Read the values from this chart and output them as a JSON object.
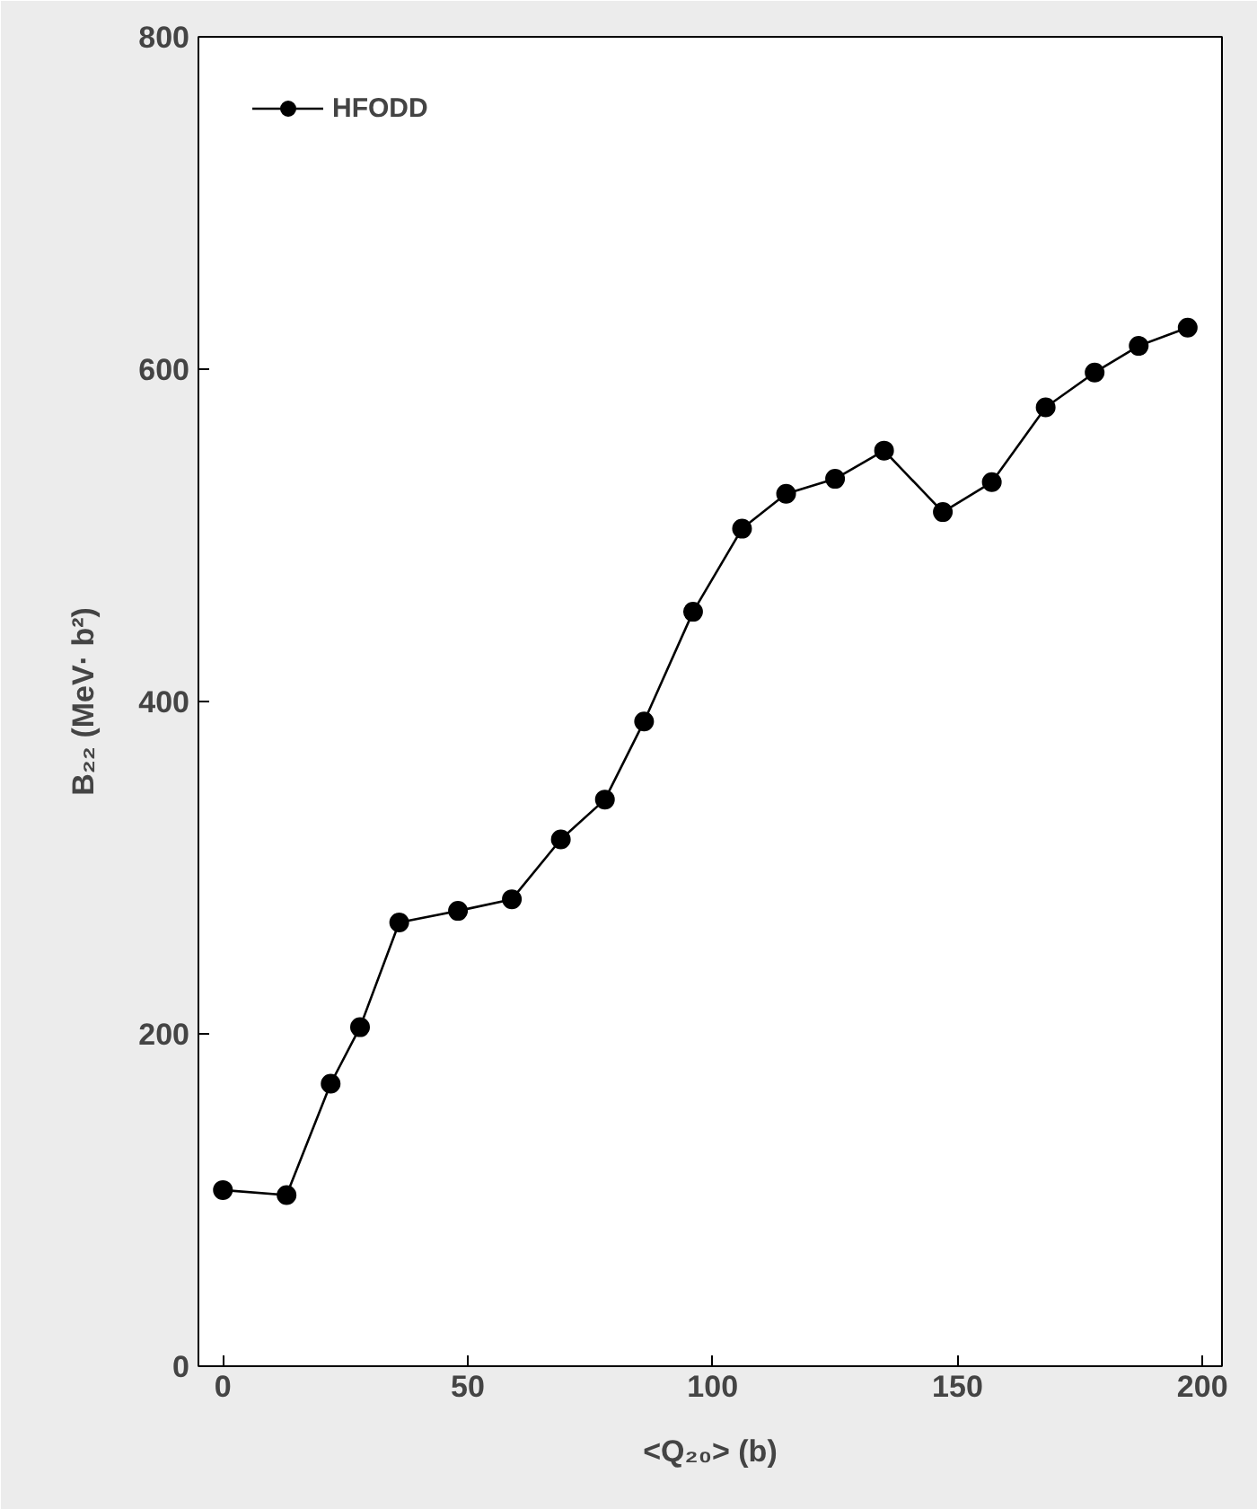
{
  "chart_data": {
    "type": "line",
    "xlabel": "<Q₂₀> (b)",
    "ylabel": "B₂₂ (MeV· b²)",
    "x": [
      0,
      13,
      22,
      28,
      36,
      48,
      59,
      69,
      78,
      86,
      96,
      106,
      115,
      125,
      135,
      147,
      157,
      168,
      178,
      187,
      197
    ],
    "series": [
      {
        "name": "HFODD",
        "color": "#000000",
        "values": [
          106,
          103,
          170,
          204,
          267,
          274,
          281,
          317,
          341,
          388,
          454,
          504,
          525,
          534,
          551,
          514,
          532,
          577,
          598,
          614,
          625
        ]
      }
    ],
    "xlim": [
      -5,
      204
    ],
    "ylim": [
      0,
      800
    ],
    "xticks": [
      0,
      50,
      100,
      150,
      200
    ],
    "yticks": [
      0,
      200,
      400,
      600,
      800
    ],
    "grid": false,
    "legend": "top left",
    "marker": "circle",
    "line_style": "solid"
  }
}
